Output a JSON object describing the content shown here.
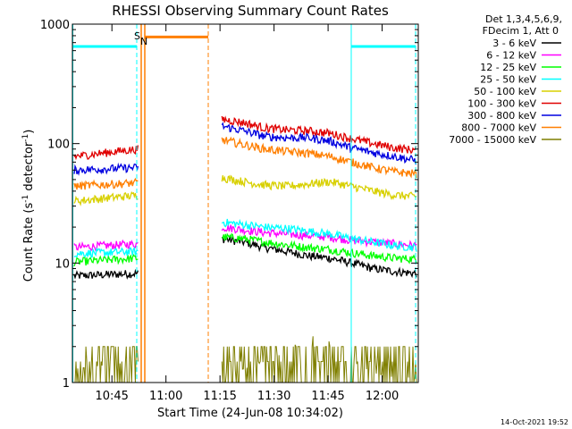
{
  "chart_data": {
    "type": "line",
    "title": "RHESSI Observing Summary Count Rates",
    "xlabel": "Start Time (24-Jun-08 10:34:02)",
    "ylabel_main": "Count Rate (s",
    "ylabel_sup1": "-1",
    "ylabel_mid": " detector",
    "ylabel_sup2": "-1",
    "ylabel_end": ")",
    "x_unit": "minutes since 10:34:02",
    "xlim": [
      0,
      96
    ],
    "ylim": [
      1,
      1000
    ],
    "yscale": "log",
    "x_ticks": [
      {
        "label": "10:45",
        "value": 10.97
      },
      {
        "label": "11:00",
        "value": 25.97
      },
      {
        "label": "11:15",
        "value": 40.97
      },
      {
        "label": "11:30",
        "value": 55.97
      },
      {
        "label": "11:45",
        "value": 70.97
      },
      {
        "label": "12:00",
        "value": 85.97
      }
    ],
    "y_ticks": [
      {
        "label": "1",
        "value": 1
      },
      {
        "label": "10",
        "value": 10
      },
      {
        "label": "100",
        "value": 100
      },
      {
        "label": "1000",
        "value": 1000
      }
    ],
    "legend_header": [
      "Det 1,3,4,5,6,9,",
      "FDecim 1, Att 0"
    ],
    "legend_position": "right",
    "markers": [
      {
        "label": "S",
        "color": "#ff7f00"
      },
      {
        "label": "N",
        "color": "#00ffff"
      }
    ],
    "series": [
      {
        "name": "3 - 6 keV",
        "color": "#000000",
        "segments": [
          {
            "x0": 0.5,
            "x1": 18.2,
            "values": [
              7.8,
              8.2
            ]
          },
          {
            "x0": 41.5,
            "x1": 95.5,
            "values": [
              16,
              15,
              13.5,
              12.5,
              11.5,
              11,
              10,
              9,
              8.5,
              8.2
            ]
          }
        ]
      },
      {
        "name": "6 - 12 keV",
        "color": "#ff00ff",
        "segments": [
          {
            "x0": 0.5,
            "x1": 18.2,
            "values": [
              13.5,
              14.5
            ]
          },
          {
            "x0": 41.5,
            "x1": 95.5,
            "values": [
              20,
              19,
              18,
              17.5,
              17,
              16.5,
              15.5,
              15,
              14.5,
              14
            ]
          }
        ]
      },
      {
        "name": "12 - 25 keV",
        "color": "#00ff00",
        "segments": [
          {
            "x0": 0.5,
            "x1": 18.2,
            "values": [
              10.2,
              11
            ]
          },
          {
            "x0": 41.5,
            "x1": 95.5,
            "values": [
              16.5,
              16,
              15,
              14.2,
              13.5,
              13,
              12.2,
              11.5,
              11,
              10.8
            ]
          }
        ]
      },
      {
        "name": "25 - 50 keV",
        "color": "#00ffff",
        "segments": [
          {
            "x0": 0.5,
            "x1": 18.2,
            "values": [
              12,
              12.5
            ]
          },
          {
            "x0": 41.5,
            "x1": 95.5,
            "values": [
              22,
              21,
              20,
              19.5,
              18.5,
              17.5,
              16,
              15,
              14,
              13.5
            ]
          }
        ]
      },
      {
        "name": "50 - 100 keV",
        "color": "#d8d000",
        "segments": [
          {
            "x0": 0.5,
            "x1": 18.2,
            "values": [
              33,
              37
            ]
          },
          {
            "x0": 41.5,
            "x1": 95.5,
            "values": [
              52,
              48,
              45,
              44,
              46,
              48,
              44,
              40,
              37,
              36
            ]
          }
        ]
      },
      {
        "name": "100 - 300 keV",
        "color": "#e00000",
        "segments": [
          {
            "x0": 0.5,
            "x1": 18.2,
            "values": [
              78,
              90
            ]
          },
          {
            "x0": 41.5,
            "x1": 95.5,
            "values": [
              160,
              150,
              135,
              130,
              128,
              122,
              110,
              100,
              92,
              88
            ]
          }
        ]
      },
      {
        "name": "300 - 800 keV",
        "color": "#0000e0",
        "segments": [
          {
            "x0": 0.5,
            "x1": 18.2,
            "values": [
              60,
              63
            ]
          },
          {
            "x0": 41.5,
            "x1": 95.5,
            "values": [
              140,
              128,
              115,
              112,
              112,
              105,
              92,
              84,
              78,
              72
            ]
          }
        ]
      },
      {
        "name": "800 - 7000 keV",
        "color": "#ff7f00",
        "segments": [
          {
            "x0": 0.5,
            "x1": 18.2,
            "values": [
              44,
              47
            ]
          },
          {
            "x0": 41.5,
            "x1": 95.5,
            "values": [
              108,
              98,
              90,
              86,
              83,
              78,
              70,
              63,
              58,
              56
            ]
          }
        ]
      },
      {
        "name": "7000 - 15000 keV",
        "color": "#7f7f00",
        "segments": [
          {
            "x0": 0.5,
            "x1": 18.2,
            "values": [
              1.3,
              1.5
            ]
          },
          {
            "x0": 41.5,
            "x1": 95.5,
            "values": [
              1.2,
              1.3,
              1.5,
              1.8,
              2.5,
              2.2,
              1.5,
              1.2,
              1.1,
              1.1
            ]
          }
        ]
      }
    ]
  },
  "timestamp": "14-Oct-2021 19:52"
}
